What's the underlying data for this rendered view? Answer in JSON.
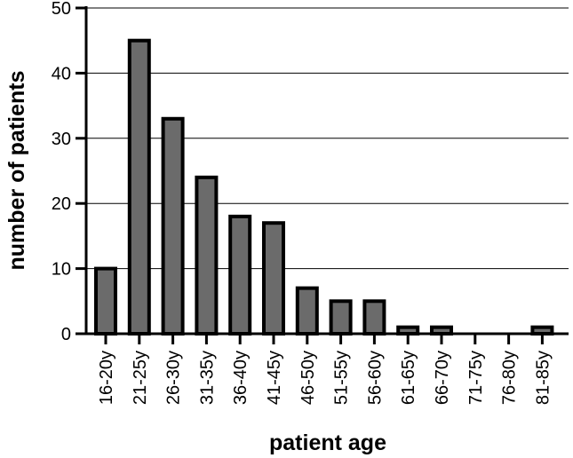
{
  "chart_data": {
    "type": "bar",
    "title": "",
    "xlabel": "patient age",
    "ylabel": "number of patients",
    "categories": [
      "16-20y",
      "21-25y",
      "26-30y",
      "31-35y",
      "36-40y",
      "41-45y",
      "46-50y",
      "51-55y",
      "56-60y",
      "61-65y",
      "66-70y",
      "71-75y",
      "76-80y",
      "81-85y"
    ],
    "values": [
      10,
      45,
      33,
      24,
      18,
      17,
      7,
      5,
      5,
      1,
      1,
      0,
      0,
      1
    ],
    "ylim": [
      0,
      50
    ],
    "yticks": [
      0,
      10,
      20,
      30,
      40,
      50
    ],
    "grid": "horizontal",
    "legend": "none",
    "colors": {
      "bar_fill": "#6b6b6b",
      "bar_stroke": "#000000",
      "grid": "#000000"
    }
  }
}
